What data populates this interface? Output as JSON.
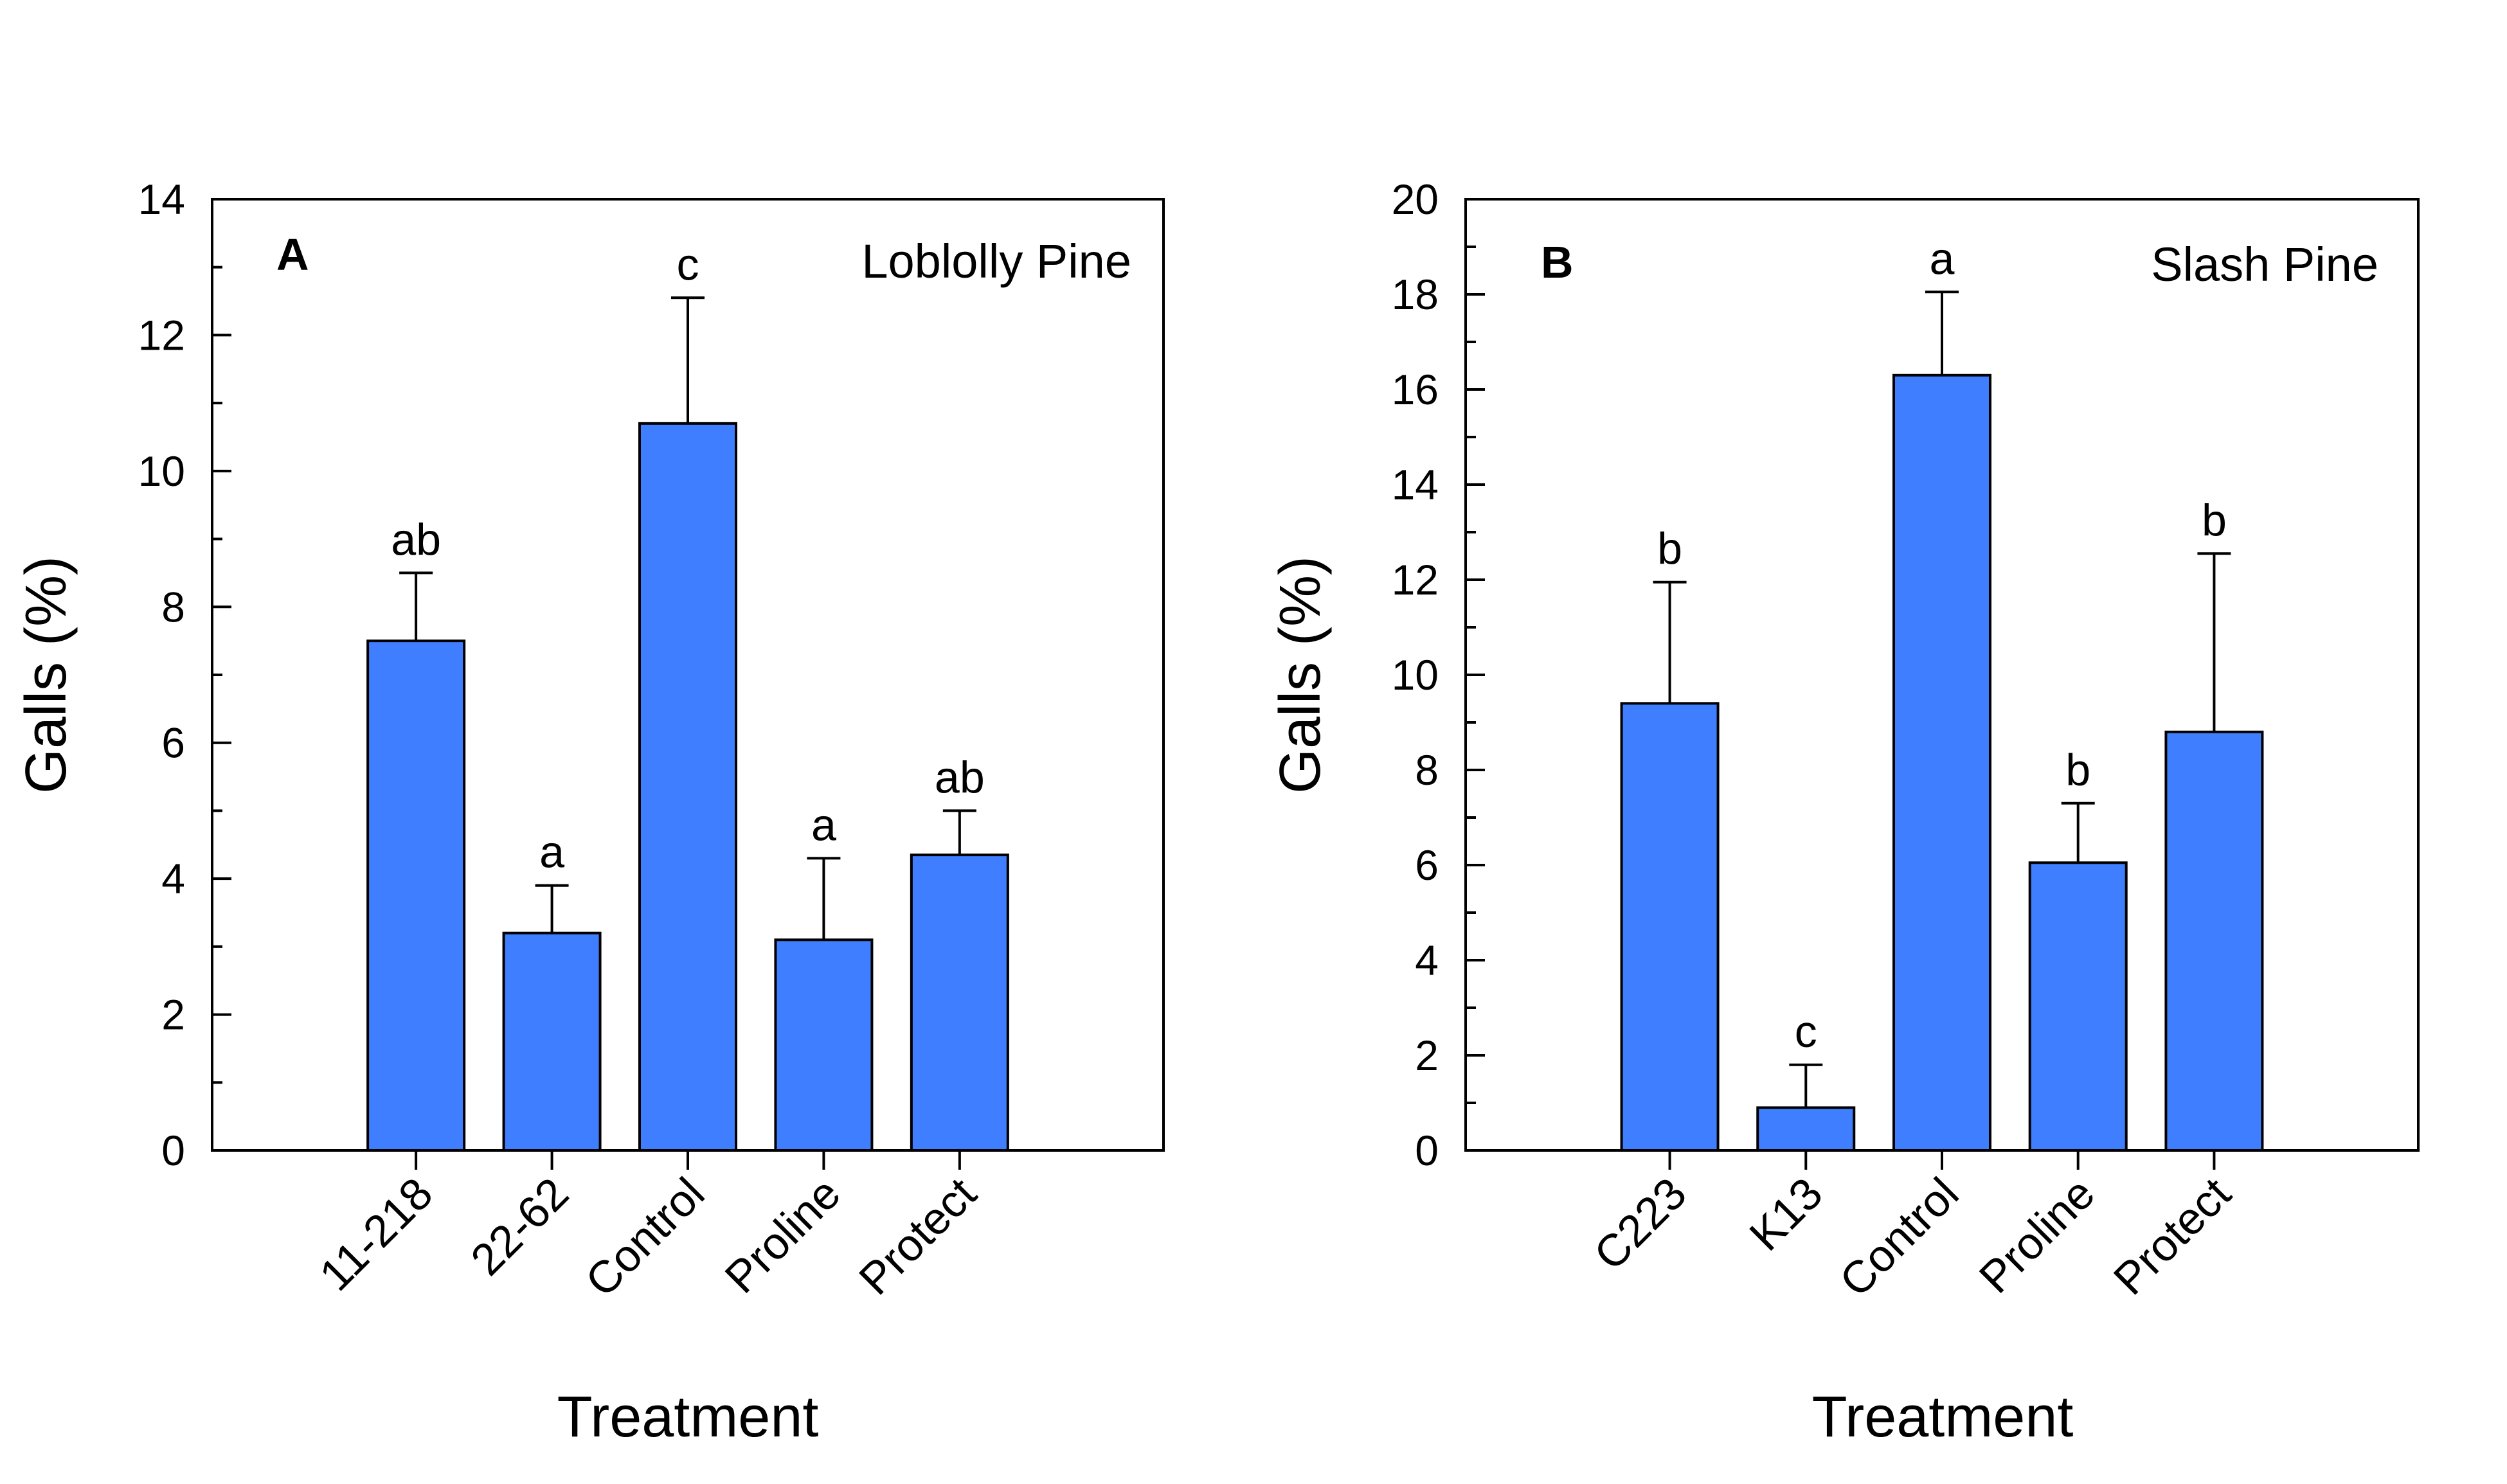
{
  "chart_data": [
    {
      "type": "bar",
      "panel_label": "A",
      "title": "Loblolly Pine",
      "xlabel": "Treatment",
      "ylabel": "Galls (%)",
      "ylim": [
        0,
        14
      ],
      "yticks": [
        0,
        2,
        4,
        6,
        8,
        10,
        12,
        14
      ],
      "categories": [
        "11-218",
        "22-62",
        "Control",
        "Proline",
        "Protect"
      ],
      "values": [
        7.5,
        3.2,
        10.7,
        3.1,
        4.35
      ],
      "errors": [
        1.0,
        0.7,
        1.85,
        1.2,
        0.65
      ],
      "significance_letters": [
        "ab",
        "a",
        "c",
        "a",
        "ab"
      ],
      "bar_color": "#3f7fff",
      "grid": false
    },
    {
      "type": "bar",
      "panel_label": "B",
      "title": "Slash Pine",
      "xlabel": "Treatment",
      "ylabel": "Galls (%)",
      "ylim": [
        0,
        20
      ],
      "yticks": [
        0,
        2,
        4,
        6,
        8,
        10,
        12,
        14,
        16,
        18,
        20
      ],
      "categories": [
        "C223",
        "K13",
        "Control",
        "Proline",
        "Protect"
      ],
      "values": [
        9.4,
        0.9,
        16.3,
        6.05,
        8.8
      ],
      "errors": [
        2.55,
        0.9,
        1.75,
        1.25,
        3.75
      ],
      "significance_letters": [
        "b",
        "c",
        "a",
        "b",
        "b"
      ],
      "bar_color": "#3f7fff",
      "grid": false
    }
  ]
}
